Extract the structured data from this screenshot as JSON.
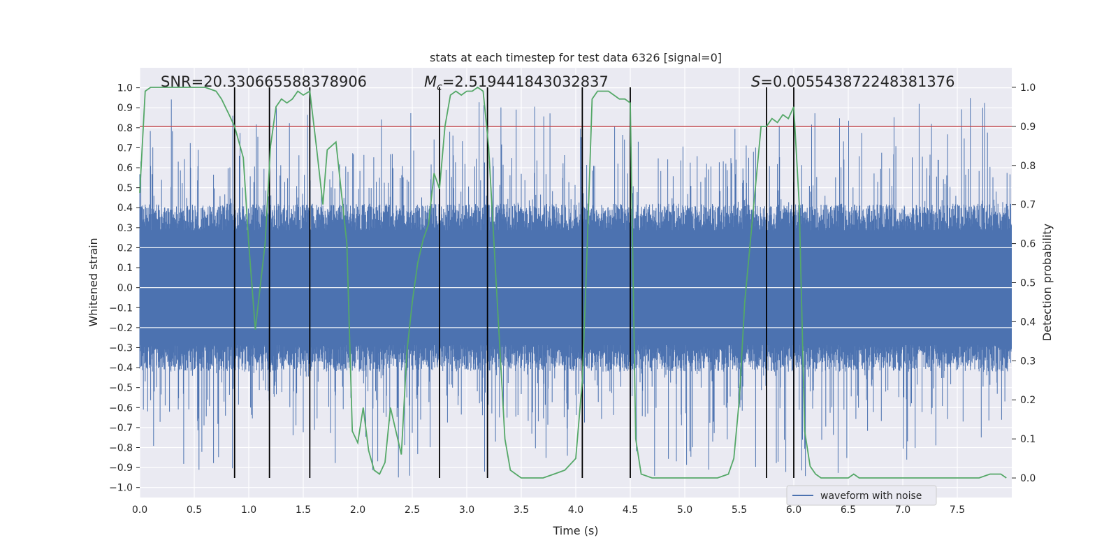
{
  "chart_data": {
    "type": "line",
    "title": "stats at each timestep for test data 6326 [signal=0]",
    "xlabel": "Time (s)",
    "ylabel_left": "Whitened strain",
    "ylabel_right": "Detection probability",
    "xlim": [
      0,
      8
    ],
    "ylim_left": [
      -1.05,
      1.1
    ],
    "ylim_right": [
      -0.05,
      1.05
    ],
    "x_ticks": [
      "0.0",
      "0.5",
      "1.0",
      "1.5",
      "2.0",
      "2.5",
      "3.0",
      "3.5",
      "4.0",
      "4.5",
      "5.0",
      "5.5",
      "6.0",
      "6.5",
      "7.0",
      "7.5"
    ],
    "x_tick_values": [
      0,
      0.5,
      1,
      1.5,
      2,
      2.5,
      3,
      3.5,
      4,
      4.5,
      5,
      5.5,
      6,
      6.5,
      7,
      7.5
    ],
    "y_left_ticks": [
      "1.0",
      "0.9",
      "0.8",
      "0.7",
      "0.6",
      "0.5",
      "0.4",
      "0.3",
      "0.2",
      "0.1",
      "0.0",
      "−0.1",
      "−0.2",
      "−0.3",
      "−0.4",
      "−0.5",
      "−0.6",
      "−0.7",
      "−0.8",
      "−0.9",
      "−1.0"
    ],
    "y_left_tick_values": [
      1,
      0.9,
      0.8,
      0.7,
      0.6,
      0.5,
      0.4,
      0.3,
      0.2,
      0.1,
      0,
      -0.1,
      -0.2,
      -0.3,
      -0.4,
      -0.5,
      -0.6,
      -0.7,
      -0.8,
      -0.9,
      -1.0
    ],
    "y_right_ticks": [
      "1.0",
      "0.9",
      "0.8",
      "0.7",
      "0.6",
      "0.5",
      "0.4",
      "0.3",
      "0.2",
      "0.1",
      "0.0"
    ],
    "y_right_tick_values": [
      1,
      0.9,
      0.8,
      0.7,
      0.6,
      0.5,
      0.4,
      0.3,
      0.2,
      0.1,
      0
    ],
    "annotations": {
      "snr_text": "SNR=20.330665588378906",
      "mc_symbol": "M",
      "mc_sub": "c",
      "mc_value": "=2.519441843032837",
      "s_symbol": "S",
      "s_value": "=0.005543872248381376"
    },
    "threshold": {
      "value": 0.9,
      "axis": "right",
      "color": "#c44e52"
    },
    "vertical_markers": [
      0.87,
      1.19,
      1.56,
      2.75,
      3.19,
      4.06,
      4.5,
      5.75,
      6.0
    ],
    "waveform": {
      "name": "waveform with noise",
      "color": "#4c72b0",
      "core_amplitude": 0.4,
      "spike_amplitude": 0.95
    },
    "detection_probability": {
      "color": "#55a868",
      "x": [
        0.0,
        0.05,
        0.1,
        0.2,
        0.3,
        0.4,
        0.5,
        0.6,
        0.7,
        0.75,
        0.82,
        0.87,
        0.95,
        1.0,
        1.06,
        1.15,
        1.2,
        1.25,
        1.3,
        1.35,
        1.4,
        1.45,
        1.5,
        1.56,
        1.62,
        1.68,
        1.72,
        1.8,
        1.9,
        1.95,
        2.0,
        2.05,
        2.1,
        2.15,
        2.2,
        2.25,
        2.3,
        2.35,
        2.4,
        2.45,
        2.5,
        2.55,
        2.6,
        2.65,
        2.7,
        2.75,
        2.8,
        2.85,
        2.9,
        2.95,
        3.0,
        3.05,
        3.1,
        3.15,
        3.2,
        3.25,
        3.3,
        3.35,
        3.4,
        3.45,
        3.5,
        3.6,
        3.7,
        3.8,
        3.9,
        4.0,
        4.06,
        4.1,
        4.15,
        4.2,
        4.25,
        4.3,
        4.35,
        4.4,
        4.45,
        4.5,
        4.55,
        4.6,
        4.7,
        4.8,
        4.9,
        5.0,
        5.1,
        5.2,
        5.3,
        5.4,
        5.45,
        5.5,
        5.55,
        5.6,
        5.65,
        5.7,
        5.75,
        5.8,
        5.85,
        5.9,
        5.95,
        6.0,
        6.05,
        6.1,
        6.15,
        6.2,
        6.25,
        6.3,
        6.4,
        6.5,
        6.55,
        6.6,
        6.7,
        6.8,
        6.9,
        7.0,
        7.2,
        7.4,
        7.6,
        7.7,
        7.8,
        7.9,
        7.95
      ],
      "y": [
        0.73,
        0.99,
        1.0,
        1.0,
        1.0,
        1.0,
        1.0,
        1.0,
        0.99,
        0.97,
        0.93,
        0.9,
        0.82,
        0.6,
        0.38,
        0.6,
        0.85,
        0.95,
        0.97,
        0.96,
        0.97,
        0.99,
        0.98,
        0.99,
        0.85,
        0.7,
        0.84,
        0.86,
        0.6,
        0.12,
        0.09,
        0.18,
        0.07,
        0.02,
        0.01,
        0.04,
        0.18,
        0.12,
        0.06,
        0.32,
        0.45,
        0.55,
        0.61,
        0.65,
        0.78,
        0.74,
        0.9,
        0.98,
        0.99,
        0.98,
        0.99,
        0.99,
        1.0,
        0.99,
        0.85,
        0.6,
        0.35,
        0.1,
        0.02,
        0.01,
        0.0,
        0.0,
        0.0,
        0.01,
        0.02,
        0.05,
        0.25,
        0.55,
        0.97,
        0.99,
        0.99,
        0.99,
        0.98,
        0.97,
        0.97,
        0.96,
        0.1,
        0.01,
        0.0,
        0.0,
        0.0,
        0.0,
        0.0,
        0.0,
        0.0,
        0.01,
        0.05,
        0.2,
        0.45,
        0.6,
        0.75,
        0.9,
        0.9,
        0.92,
        0.91,
        0.93,
        0.92,
        0.95,
        0.7,
        0.12,
        0.03,
        0.01,
        0.0,
        0.0,
        0.0,
        0.0,
        0.01,
        0.0,
        0.0,
        0.0,
        0.0,
        0.0,
        0.0,
        0.0,
        0.0,
        0.0,
        0.01,
        0.01,
        0.0
      ]
    }
  }
}
